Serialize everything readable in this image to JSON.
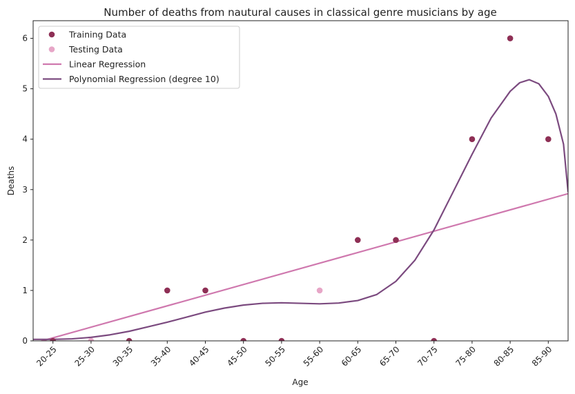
{
  "chart_data": {
    "type": "scatter",
    "title": "Number of deaths from nautural causes in classical genre musicians by age",
    "xlabel": "Age",
    "ylabel": "Deaths",
    "categories": [
      "20-25",
      "25-30",
      "30-35",
      "35-40",
      "40-45",
      "45-50",
      "50-55",
      "55-60",
      "60-65",
      "65-70",
      "70-75",
      "75-80",
      "80-85",
      "85-90"
    ],
    "ylim": [
      0,
      6.35
    ],
    "yticks": [
      0,
      1,
      2,
      3,
      4,
      5,
      6
    ],
    "xlim": [
      -0.52,
      13.52
    ],
    "series": [
      {
        "name": "Training Data",
        "kind": "points",
        "color": "#8e2f55",
        "points": [
          {
            "x": 0,
            "y": 0
          },
          {
            "x": 2,
            "y": 0
          },
          {
            "x": 3,
            "y": 1
          },
          {
            "x": 4,
            "y": 1
          },
          {
            "x": 5,
            "y": 0
          },
          {
            "x": 6,
            "y": 0
          },
          {
            "x": 8,
            "y": 2
          },
          {
            "x": 9,
            "y": 2
          },
          {
            "x": 10,
            "y": 0
          },
          {
            "x": 11,
            "y": 4
          },
          {
            "x": 12,
            "y": 6
          },
          {
            "x": 13,
            "y": 4
          }
        ]
      },
      {
        "name": "Testing Data",
        "kind": "points",
        "color": "#e7a6c7",
        "points": [
          {
            "x": 1,
            "y": 0
          },
          {
            "x": 7,
            "y": 1
          }
        ]
      },
      {
        "name": "Linear Regression",
        "kind": "line",
        "color": "#cf78ae",
        "points": [
          {
            "x": -0.52,
            "y": -0.05
          },
          {
            "x": 13.52,
            "y": 2.92
          }
        ]
      },
      {
        "name": "Polynomial Regression (degree 10)",
        "kind": "line",
        "color": "#7b4a7f",
        "points": [
          {
            "x": -0.52,
            "y": 0.03
          },
          {
            "x": 0,
            "y": 0.03
          },
          {
            "x": 0.5,
            "y": 0.04
          },
          {
            "x": 1,
            "y": 0.07
          },
          {
            "x": 1.5,
            "y": 0.12
          },
          {
            "x": 2,
            "y": 0.19
          },
          {
            "x": 2.5,
            "y": 0.28
          },
          {
            "x": 3,
            "y": 0.37
          },
          {
            "x": 3.5,
            "y": 0.47
          },
          {
            "x": 4,
            "y": 0.57
          },
          {
            "x": 4.5,
            "y": 0.65
          },
          {
            "x": 5,
            "y": 0.71
          },
          {
            "x": 5.5,
            "y": 0.745
          },
          {
            "x": 6,
            "y": 0.755
          },
          {
            "x": 6.5,
            "y": 0.745
          },
          {
            "x": 7,
            "y": 0.735
          },
          {
            "x": 7.5,
            "y": 0.75
          },
          {
            "x": 8,
            "y": 0.8
          },
          {
            "x": 8.5,
            "y": 0.92
          },
          {
            "x": 9,
            "y": 1.18
          },
          {
            "x": 9.5,
            "y": 1.6
          },
          {
            "x": 10,
            "y": 2.2
          },
          {
            "x": 10.5,
            "y": 2.95
          },
          {
            "x": 11,
            "y": 3.7
          },
          {
            "x": 11.5,
            "y": 4.42
          },
          {
            "x": 12,
            "y": 4.95
          },
          {
            "x": 12.25,
            "y": 5.12
          },
          {
            "x": 12.5,
            "y": 5.18
          },
          {
            "x": 12.75,
            "y": 5.1
          },
          {
            "x": 13,
            "y": 4.85
          },
          {
            "x": 13.2,
            "y": 4.5
          },
          {
            "x": 13.4,
            "y": 3.9
          },
          {
            "x": 13.52,
            "y": 2.95
          }
        ]
      }
    ],
    "legend_position": "top-left",
    "grid": false
  }
}
